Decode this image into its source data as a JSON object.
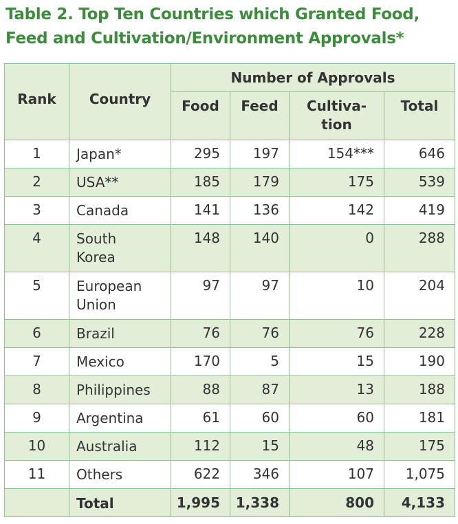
{
  "title_line1": "Table 2. Top Ten Countries which Granted Food,",
  "title_line2": "Feed and Cultivation/Environment Approvals*",
  "headers": {
    "rank": "Rank",
    "country": "Country",
    "group": "Number of Approvals",
    "food": "Food",
    "feed": "Feed",
    "cultivation_line1": "Cultiva-",
    "cultivation_line2": "tion",
    "total": "Total"
  },
  "rows": [
    {
      "rank": "1",
      "country1": "Japan*",
      "country2": "",
      "food": "295",
      "feed": "197",
      "cult": "154***",
      "total": "646"
    },
    {
      "rank": "2",
      "country1": "USA**",
      "country2": "",
      "food": "185",
      "feed": "179",
      "cult": "175",
      "total": "539"
    },
    {
      "rank": "3",
      "country1": "Canada",
      "country2": "",
      "food": "141",
      "feed": "136",
      "cult": "142",
      "total": "419"
    },
    {
      "rank": "4",
      "country1": "South",
      "country2": "Korea",
      "food": "148",
      "feed": "140",
      "cult": "0",
      "total": "288"
    },
    {
      "rank": "5",
      "country1": "European",
      "country2": "Union",
      "food": "97",
      "feed": "97",
      "cult": "10",
      "total": "204"
    },
    {
      "rank": "6",
      "country1": "Brazil",
      "country2": "",
      "food": "76",
      "feed": "76",
      "cult": "76",
      "total": "228"
    },
    {
      "rank": "7",
      "country1": "Mexico",
      "country2": "",
      "food": "170",
      "feed": "5",
      "cult": "15",
      "total": "190"
    },
    {
      "rank": "8",
      "country1": "Philippines",
      "country2": "",
      "food": "88",
      "feed": "87",
      "cult": "13",
      "total": "188"
    },
    {
      "rank": "9",
      "country1": "Argentina",
      "country2": "",
      "food": "61",
      "feed": "60",
      "cult": "60",
      "total": "181"
    },
    {
      "rank": "10",
      "country1": "Australia",
      "country2": "",
      "food": "112",
      "feed": "15",
      "cult": "48",
      "total": "175"
    },
    {
      "rank": "11",
      "country1": "Others",
      "country2": "",
      "food": "622",
      "feed": "346",
      "cult": "107",
      "total": "1,075"
    }
  ],
  "totals": {
    "label": "Total",
    "food": "1,995",
    "feed": "1,338",
    "cult": "800",
    "total": "4,133"
  },
  "colors": {
    "title": "#3d8b3d",
    "shade": "#e2eed7",
    "border": "#8fc08f",
    "text": "#333333"
  }
}
